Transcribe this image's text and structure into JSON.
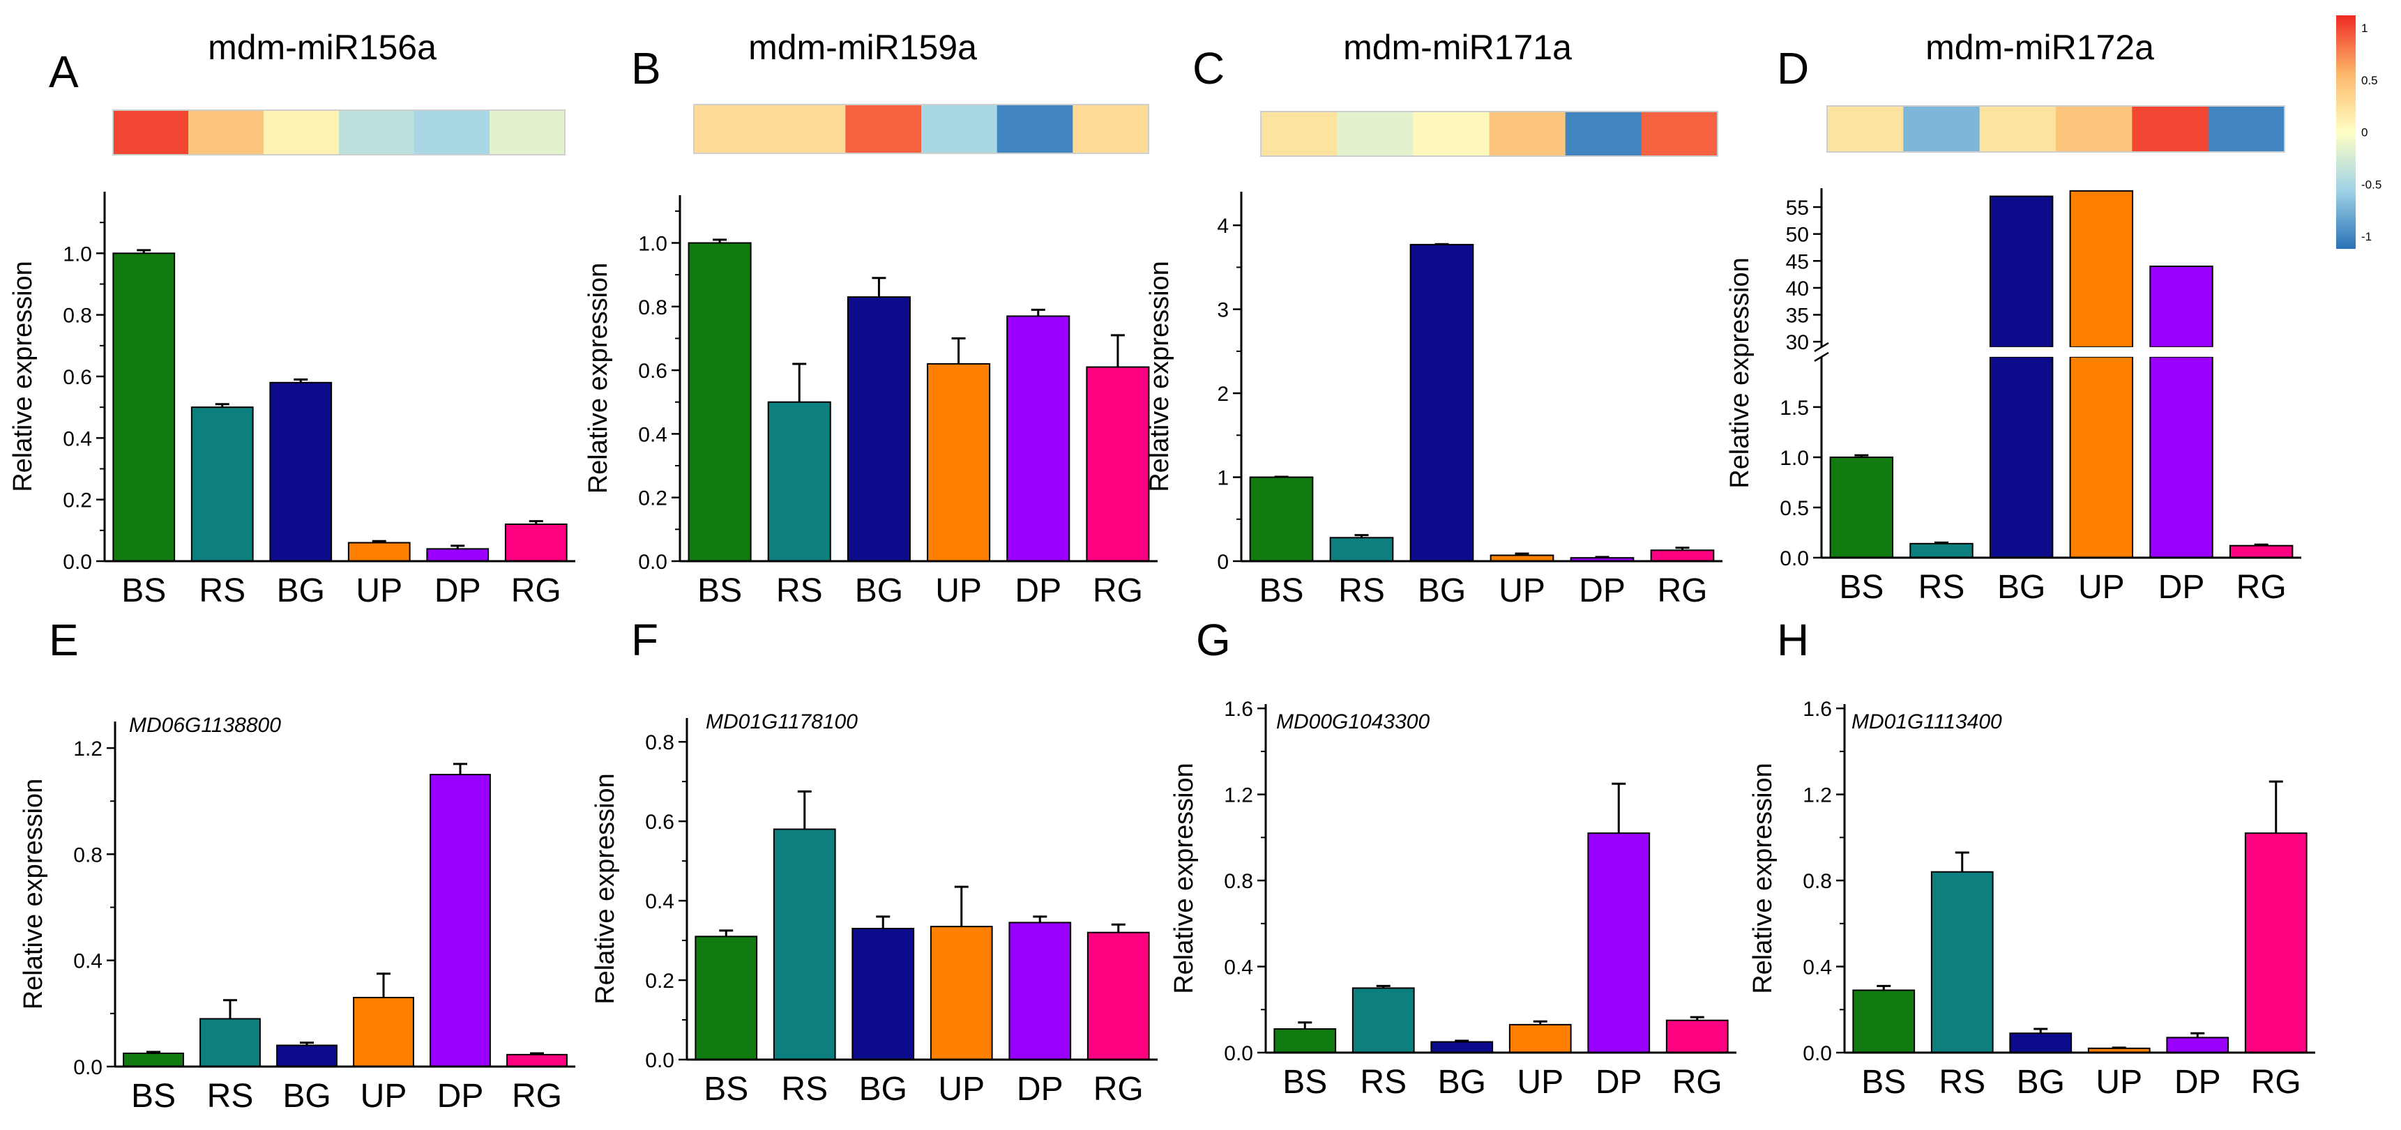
{
  "chart_data": [
    {
      "type": "bar",
      "panel_letter": "A",
      "title": "mdm-miR156a",
      "italic_title": false,
      "categories": [
        "BS",
        "RS",
        "BG",
        "UP",
        "DP",
        "RG"
      ],
      "values": [
        1.0,
        0.5,
        0.58,
        0.06,
        0.04,
        0.12
      ],
      "errors": [
        0.01,
        0.01,
        0.01,
        0.005,
        0.01,
        0.01
      ],
      "ylabel": "Relative expression",
      "ylim": [
        0,
        1.2
      ],
      "yticks": [
        0.0,
        0.2,
        0.4,
        0.6,
        0.8,
        1.0
      ],
      "ytick_labels": [
        "0.0",
        "0.2",
        "0.4",
        "0.6",
        "0.8",
        "1.0"
      ],
      "heatmap": [
        0.9,
        0.4,
        0.1,
        -0.35,
        -0.45,
        -0.15
      ]
    },
    {
      "type": "bar",
      "panel_letter": "B",
      "title": "mdm-miR159a",
      "italic_title": false,
      "categories": [
        "BS",
        "RS",
        "BG",
        "UP",
        "DP",
        "RG"
      ],
      "values": [
        1.0,
        0.5,
        0.83,
        0.62,
        0.77,
        0.61
      ],
      "errors": [
        0.01,
        0.12,
        0.06,
        0.08,
        0.02,
        0.1
      ],
      "ylabel": "Relative expression",
      "ylim": [
        0,
        1.15
      ],
      "yticks": [
        0.0,
        0.2,
        0.4,
        0.6,
        0.8,
        1.0
      ],
      "ytick_labels": [
        "0.0",
        "0.2",
        "0.4",
        "0.6",
        "0.8",
        "1.0"
      ],
      "heatmap": [
        0.25,
        0.25,
        0.8,
        -0.45,
        -0.9,
        0.25
      ]
    },
    {
      "type": "bar",
      "panel_letter": "C",
      "title": "mdm-miR171a",
      "italic_title": false,
      "categories": [
        "BS",
        "RS",
        "BG",
        "UP",
        "DP",
        "RG"
      ],
      "values": [
        1.0,
        0.28,
        3.77,
        0.07,
        0.04,
        0.13
      ],
      "errors": [
        0.005,
        0.03,
        0.005,
        0.02,
        0.01,
        0.03
      ],
      "ylabel": "Relative expression",
      "ylim": [
        0,
        4.4
      ],
      "yticks": [
        0,
        1,
        2,
        3,
        4
      ],
      "ytick_labels": [
        "0",
        "1",
        "2",
        "3",
        "4"
      ],
      "heatmap": [
        0.2,
        -0.15,
        0.05,
        0.4,
        -0.9,
        0.8
      ]
    },
    {
      "type": "bar",
      "panel_letter": "D",
      "title": "mdm-miR172a",
      "italic_title": false,
      "categories": [
        "BS",
        "RS",
        "BG",
        "UP",
        "DP",
        "RG"
      ],
      "values": [
        1.0,
        0.14,
        57,
        58,
        44,
        0.12
      ],
      "errors": [
        0.02,
        0.01,
        0,
        0,
        0,
        0.01
      ],
      "ylabel": "Relative expression",
      "broken_axis": true,
      "lower_ylim": [
        0,
        2.0
      ],
      "upper_ylim": [
        29,
        58.5
      ],
      "lower_yticks": [
        0.0,
        0.5,
        1.0,
        1.5
      ],
      "lower_ytick_labels": [
        "0.0",
        "0.5",
        "1.0",
        "1.5"
      ],
      "upper_yticks": [
        30,
        35,
        40,
        45,
        50,
        55
      ],
      "upper_ytick_labels": [
        "30",
        "35",
        "40",
        "45",
        "50",
        "55"
      ],
      "heatmap": [
        0.2,
        -0.65,
        0.2,
        0.4,
        0.9,
        -0.9
      ]
    },
    {
      "type": "bar",
      "panel_letter": "E",
      "title": "MD06G1138800",
      "italic_title": true,
      "categories": [
        "BS",
        "RS",
        "BG",
        "UP",
        "DP",
        "RG"
      ],
      "values": [
        0.05,
        0.18,
        0.08,
        0.26,
        1.1,
        0.045
      ],
      "errors": [
        0.005,
        0.07,
        0.01,
        0.09,
        0.04,
        0.005
      ],
      "ylabel": "Relative expression",
      "ylim": [
        0,
        1.3
      ],
      "yticks": [
        0.0,
        0.4,
        0.8,
        1.2
      ],
      "ytick_labels": [
        "0.0",
        "0.4",
        "0.8",
        "1.2"
      ]
    },
    {
      "type": "bar",
      "panel_letter": "F",
      "title": "MD01G1178100",
      "italic_title": true,
      "categories": [
        "BS",
        "RS",
        "BG",
        "UP",
        "DP",
        "RG"
      ],
      "values": [
        0.31,
        0.58,
        0.33,
        0.335,
        0.345,
        0.32
      ],
      "errors": [
        0.015,
        0.095,
        0.03,
        0.1,
        0.015,
        0.02
      ],
      "ylabel": "Relative expression",
      "ylim": [
        0,
        0.86
      ],
      "yticks": [
        0.0,
        0.2,
        0.4,
        0.6,
        0.8
      ],
      "ytick_labels": [
        "0.0",
        "0.2",
        "0.4",
        "0.6",
        "0.8"
      ]
    },
    {
      "type": "bar",
      "panel_letter": "G",
      "title": "MD00G1043300",
      "italic_title": true,
      "categories": [
        "BS",
        "RS",
        "BG",
        "UP",
        "DP",
        "RG"
      ],
      "values": [
        0.11,
        0.3,
        0.05,
        0.13,
        1.02,
        0.15
      ],
      "errors": [
        0.03,
        0.01,
        0.005,
        0.015,
        0.23,
        0.015
      ],
      "ylabel": "Relative expression",
      "ylim": [
        0,
        1.62
      ],
      "yticks": [
        0.0,
        0.4,
        0.8,
        1.2,
        1.6
      ],
      "ytick_labels": [
        "0.0",
        "0.4",
        "0.8",
        "1.2",
        "1.6"
      ]
    },
    {
      "type": "bar",
      "panel_letter": "H",
      "title": "MD01G1113400",
      "italic_title": true,
      "categories": [
        "BS",
        "RS",
        "BG",
        "UP",
        "DP",
        "RG"
      ],
      "values": [
        0.29,
        0.84,
        0.09,
        0.02,
        0.07,
        1.02
      ],
      "errors": [
        0.02,
        0.09,
        0.02,
        0.003,
        0.02,
        0.24
      ],
      "ylabel": "Relative expression",
      "ylim": [
        0,
        1.62
      ],
      "yticks": [
        0.0,
        0.4,
        0.8,
        1.2,
        1.6
      ],
      "ytick_labels": [
        "0.0",
        "0.4",
        "0.8",
        "1.2",
        "1.6"
      ]
    }
  ],
  "bar_colors": [
    "#117a11",
    "#0e7f7f",
    "#0b0b8c",
    "#ff8000",
    "#9a00ff",
    "#ff0080"
  ],
  "colorbar": {
    "ticks": [
      1,
      0.5,
      0,
      -0.5,
      -1
    ],
    "labels": [
      "1",
      "0.5",
      "0",
      "-0.5",
      "-1"
    ],
    "colors": [
      "#2a73b8",
      "#9fd2e6",
      "#ffffc4",
      "#fdb769",
      "#ef2a24"
    ]
  }
}
